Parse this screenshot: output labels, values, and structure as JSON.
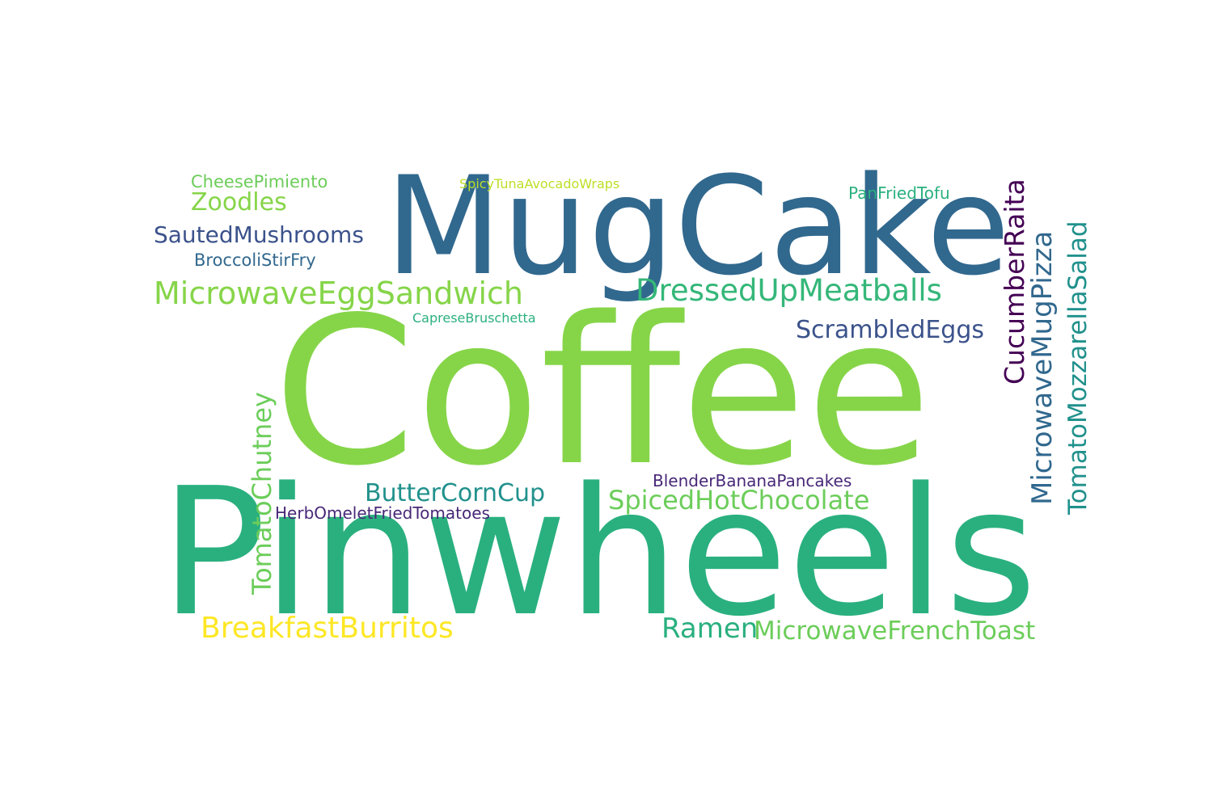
{
  "colors": {
    "background": "#ffffff",
    "lime": "#86d549",
    "teal_green": "#2ab07f",
    "steel_blue": "#31688e",
    "slate_blue": "#3b528b",
    "purple": "#482878",
    "dark_purple": "#440154",
    "teal": "#21918c",
    "sea_green": "#35b779",
    "yellow": "#fde725",
    "yellow_green": "#bddf26",
    "light_green": "#6ccd5a"
  },
  "words": {
    "coffee": "Coffee",
    "pinwheels": "Pinwheels",
    "mugcake": "MugCake",
    "microwave_egg_sandwich": "MicrowaveEggSandwich",
    "dressed_up_meatballs": "DressedUpMeatballs",
    "sauted_mushrooms": "SautedMushrooms",
    "zoodles": "Zoodles",
    "cheese_pimiento": "CheesePimiento",
    "broccoli_stir_fry": "BroccoliStirFry",
    "spicy_tuna_avocado_wraps": "SpicyTunaAvocadoWraps",
    "pan_fried_tofu": "PanFriedTofu",
    "caprese_bruschetta": "CapreseBruschetta",
    "scrambled_eggs": "ScrambledEggs",
    "cucumber_raita": "CucumberRaita",
    "microwave_mug_pizza": "MicrowaveMugPizza",
    "tomato_mozzarella_salad": "TomatoMozzarellaSalad",
    "tomato_chutney": "TomatoChutney",
    "butter_corn_cup": "ButterCornCup",
    "herb_omelet_fried_tomatoes": "HerbOmeletFriedTomatoes",
    "blender_banana_pancakes": "BlenderBananaPancakes",
    "spiced_hot_chocolate": "SpicedHotChocolate",
    "breakfast_burritos": "BreakfastBurritos",
    "ramen": "Ramen",
    "microwave_french_toast": "MicrowaveFrenchToast"
  }
}
